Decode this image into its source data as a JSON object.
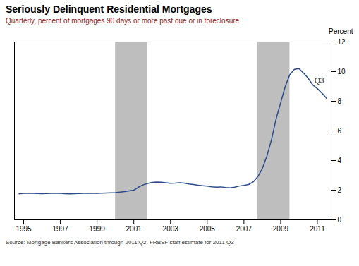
{
  "chart_data": {
    "type": "line",
    "title": "Seriously Delinquent Residential Mortgages",
    "subtitle": "Quarterly, percent of mortgages 90 days or more past due or in foreclosure",
    "source": "Source: Mortgage Bankers Association through 2011:Q2.  FRBSF staff  estimate for 2011 Q3",
    "y_label": "Percent",
    "annotations": [
      {
        "text": "Q3",
        "x": 2010.85,
        "y": 9.35
      }
    ],
    "recession_bands": [
      {
        "x1": 2000.0,
        "x2": 2001.75,
        "color": "#BEBEBE"
      },
      {
        "x1": 2007.75,
        "x2": 2009.5,
        "color": "#BEBEBE"
      }
    ],
    "color": "#2B4C8C",
    "grid": false,
    "xlim": [
      1994.5,
      2011.75
    ],
    "xticks": [
      1995,
      1997,
      1999,
      2001,
      2003,
      2005,
      2007,
      2009,
      2011
    ],
    "ylim": [
      0,
      12
    ],
    "yticks": [
      0,
      2,
      4,
      6,
      8,
      10,
      12
    ],
    "x": [
      1994.75,
      1995.0,
      1995.25,
      1995.5,
      1995.75,
      1996.0,
      1996.25,
      1996.5,
      1996.75,
      1997.0,
      1997.25,
      1997.5,
      1997.75,
      1998.0,
      1998.25,
      1998.5,
      1998.75,
      1999.0,
      1999.25,
      1999.5,
      1999.75,
      2000.0,
      2000.25,
      2000.5,
      2000.75,
      2001.0,
      2001.25,
      2001.5,
      2001.75,
      2002.0,
      2002.25,
      2002.5,
      2002.75,
      2003.0,
      2003.25,
      2003.5,
      2003.75,
      2004.0,
      2004.25,
      2004.5,
      2004.75,
      2005.0,
      2005.25,
      2005.5,
      2005.75,
      2006.0,
      2006.25,
      2006.5,
      2006.75,
      2007.0,
      2007.25,
      2007.5,
      2007.75,
      2008.0,
      2008.25,
      2008.5,
      2008.75,
      2009.0,
      2009.25,
      2009.5,
      2009.75,
      2010.0,
      2010.25,
      2010.5,
      2010.75,
      2011.0,
      2011.25,
      2011.5
    ],
    "values": [
      1.75,
      1.78,
      1.8,
      1.79,
      1.77,
      1.76,
      1.77,
      1.78,
      1.79,
      1.78,
      1.76,
      1.75,
      1.76,
      1.77,
      1.79,
      1.8,
      1.79,
      1.78,
      1.8,
      1.81,
      1.82,
      1.83,
      1.87,
      1.9,
      1.95,
      2.0,
      2.2,
      2.35,
      2.45,
      2.52,
      2.55,
      2.53,
      2.5,
      2.47,
      2.48,
      2.5,
      2.48,
      2.42,
      2.38,
      2.33,
      2.3,
      2.27,
      2.23,
      2.2,
      2.22,
      2.18,
      2.15,
      2.2,
      2.28,
      2.32,
      2.38,
      2.55,
      2.9,
      3.45,
      4.3,
      5.4,
      6.8,
      7.9,
      9.0,
      9.8,
      10.15,
      10.2,
      9.9,
      9.55,
      9.1,
      8.85,
      8.55,
      8.2
    ]
  }
}
